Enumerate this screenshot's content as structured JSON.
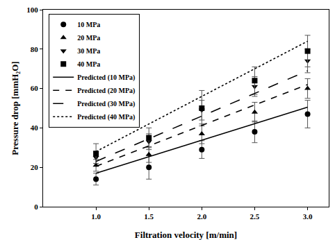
{
  "chart_data": {
    "type": "scatter",
    "xlabel": "Filtration velocity [m/min]",
    "ylabel": "Pressure drop [mmH₂O]",
    "xlim": [
      0.5,
      3.2
    ],
    "xticks": [
      {
        "value": 1,
        "label": "1.0"
      },
      {
        "value": 1.5,
        "label": "1.5"
      },
      {
        "value": 2,
        "label": "2.0"
      },
      {
        "value": 2.5,
        "label": "2.5"
      },
      {
        "value": 3,
        "label": "3.0"
      }
    ],
    "ylim": [
      0,
      100
    ],
    "yticks": [
      0,
      20,
      40,
      60,
      80,
      100
    ],
    "grid": false,
    "legend": "upper left",
    "series": [
      {
        "name": "10 MPa",
        "type": "scatter",
        "marker": "circle",
        "color": "#000000",
        "x": [
          1,
          1.5,
          2,
          2.5,
          3
        ],
        "values": [
          14,
          20,
          29,
          38,
          47
        ],
        "error": [
          3,
          6,
          4.5,
          5.5,
          7
        ]
      },
      {
        "name": "20 MPa",
        "type": "scatter",
        "marker": "triangle-up",
        "color": "#000000",
        "x": [
          1,
          1.5,
          2,
          2.5,
          3
        ],
        "values": [
          21,
          26.5,
          37,
          48,
          60
        ],
        "error": [
          3,
          4,
          5,
          5,
          5
        ]
      },
      {
        "name": "30 MPa",
        "type": "scatter",
        "marker": "triangle-down",
        "color": "#000000",
        "x": [
          1,
          1.5,
          2,
          2.5,
          3
        ],
        "values": [
          25,
          33,
          49,
          61,
          74
        ],
        "error": [
          3,
          4,
          5,
          5,
          6
        ]
      },
      {
        "name": "40 MPa",
        "type": "scatter",
        "marker": "square",
        "color": "#000000",
        "x": [
          1,
          1.5,
          2,
          2.5,
          3
        ],
        "values": [
          27,
          35,
          50,
          64,
          79
        ],
        "error": [
          5,
          5,
          9,
          7,
          8
        ]
      },
      {
        "name": "Predicted (10 MPa)",
        "type": "line",
        "line_style": "solid",
        "color": "#000000",
        "x": [
          1,
          3
        ],
        "values": [
          17,
          50.5
        ]
      },
      {
        "name": "Predicted (20 MPa)",
        "type": "line",
        "line_style": "dash",
        "color": "#000000",
        "x": [
          1,
          3
        ],
        "values": [
          20.5,
          62
        ]
      },
      {
        "name": "Predicted (30 MPa)",
        "type": "line",
        "line_style": "longdash",
        "color": "#000000",
        "x": [
          1,
          3
        ],
        "values": [
          23,
          69
        ]
      },
      {
        "name": "Predicted (40 MPa)",
        "type": "line",
        "line_style": "dot",
        "color": "#000000",
        "x": [
          1,
          3
        ],
        "values": [
          28,
          84
        ]
      }
    ]
  }
}
